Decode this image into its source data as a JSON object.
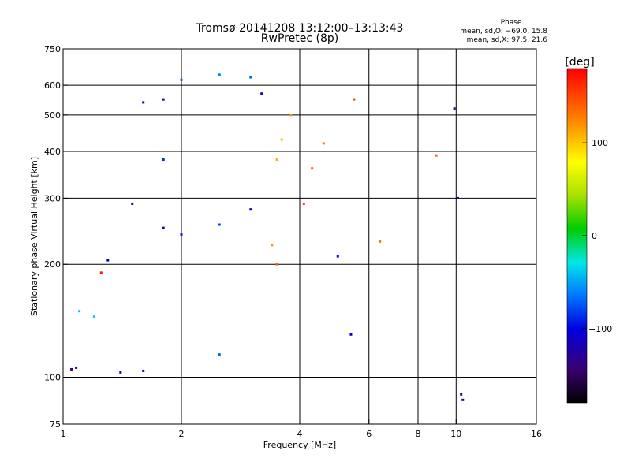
{
  "chart_data": {
    "type": "scatter",
    "title": "Tromsø 20141208 13:12:00–13:13:43",
    "subtitle": "RwPretec (8p)",
    "xlabel": "Frequency [MHz]",
    "ylabel": "Stationary phase Virtual Height [km]",
    "x_scale": "log",
    "y_scale": "log",
    "xlim": [
      1,
      16
    ],
    "ylim": [
      75,
      750
    ],
    "x_ticks": [
      1,
      2,
      4,
      6,
      8,
      10,
      16
    ],
    "x_tick_labels": [
      "1",
      "2",
      "4",
      "6",
      "8",
      "10",
      "16"
    ],
    "y_ticks": [
      75,
      100,
      200,
      300,
      400,
      500,
      600,
      750
    ],
    "y_tick_labels": [
      "75",
      "100",
      "200",
      "300",
      "400",
      "500",
      "600",
      "750"
    ],
    "grid": true,
    "stats": {
      "heading": "Phase",
      "line_o": "mean, sd,O: −69.0, 15.8",
      "line_x": "mean, sd,X:  97.5, 21.6"
    },
    "colorbar": {
      "label": "[deg]",
      "range": [
        -180,
        180
      ],
      "ticks": [
        100,
        0,
        -100
      ],
      "tick_labels": [
        "100",
        "0",
        "−100"
      ]
    },
    "series": [
      {
        "points": [
          [
            1.05,
            105,
            -140
          ],
          [
            1.08,
            106,
            -140
          ],
          [
            1.1,
            150,
            -40
          ],
          [
            1.2,
            145,
            -40
          ],
          [
            1.25,
            190,
            170
          ],
          [
            1.3,
            205,
            -110
          ],
          [
            1.4,
            103,
            -120
          ],
          [
            1.6,
            104,
            -110
          ],
          [
            1.6,
            540,
            -110
          ],
          [
            1.8,
            550,
            -110
          ],
          [
            2.5,
            115,
            -70
          ],
          [
            1.5,
            290,
            -110
          ],
          [
            1.8,
            250,
            -100
          ],
          [
            2.0,
            240,
            -90
          ],
          [
            2.5,
            255,
            -80
          ],
          [
            3.0,
            280,
            -110
          ],
          [
            1.8,
            380,
            -90
          ],
          [
            2.0,
            620,
            -70
          ],
          [
            2.5,
            640,
            -60
          ],
          [
            3.0,
            630,
            -70
          ],
          [
            3.2,
            570,
            -120
          ],
          [
            3.5,
            380,
            110
          ],
          [
            3.6,
            430,
            100
          ],
          [
            3.8,
            500,
            120
          ],
          [
            4.1,
            290,
            150
          ],
          [
            4.3,
            360,
            140
          ],
          [
            4.6,
            420,
            130
          ],
          [
            5.5,
            550,
            150
          ],
          [
            3.5,
            200,
            140
          ],
          [
            3.4,
            225,
            120
          ],
          [
            5.0,
            210,
            -100
          ],
          [
            5.4,
            130,
            -110
          ],
          [
            6.4,
            230,
            130
          ],
          [
            8.9,
            390,
            140
          ],
          [
            9.9,
            520,
            -120
          ],
          [
            10.1,
            300,
            -120
          ],
          [
            10.3,
            90,
            -130
          ],
          [
            10.4,
            87,
            -130
          ]
        ]
      }
    ]
  }
}
